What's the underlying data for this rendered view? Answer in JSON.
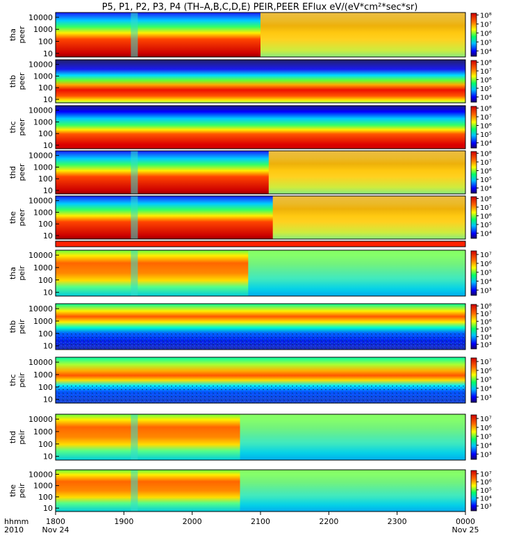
{
  "title": "P5, P1, P2, P3, P4 (TH–A,B,C,D,E) PEIR,PEER EFlux eV/(eV*cm²*sec*sr)",
  "chart_data": {
    "type": "heatmap",
    "title": "P5, P1, P2, P3, P4 (TH–A,B,C,D,E) PEIR,PEER EFlux eV/(eV*cm²*sec*sr)",
    "x_axis": {
      "label_lines": [
        "hhmm",
        "2010"
      ],
      "range_hours": [
        18,
        24
      ],
      "ticks": [
        "1800",
        "1900",
        "2000",
        "2100",
        "2200",
        "2300",
        "0000"
      ],
      "date_labels": [
        {
          "tick": "1800",
          "text": "Nov 24"
        },
        {
          "tick": "0000",
          "text": "Nov 25"
        }
      ]
    },
    "y_axis": {
      "scale": "log",
      "range_eV": [
        5,
        25000
      ],
      "ticks": [
        "10",
        "100",
        "1000",
        "10000"
      ]
    },
    "colormap": "rainbow (blue → cyan → green → yellow → red)",
    "panels": [
      {
        "probe": "tha",
        "product": "peer",
        "label": [
          "tha",
          "peer"
        ],
        "colorbar_ticks": [
          "10⁴",
          "10⁵",
          "10⁶",
          "10⁷",
          "10⁸"
        ],
        "clim_log10": [
          3.4,
          8.2
        ],
        "ticks_log10": [
          4,
          5,
          6,
          7,
          8
        ]
      },
      {
        "probe": "thb",
        "product": "peer",
        "label": [
          "thb",
          "peer"
        ],
        "colorbar_ticks": [
          "10⁴",
          "10⁵",
          "10⁶",
          "10⁷",
          "10⁸"
        ],
        "clim_log10": [
          3.4,
          8.2
        ],
        "ticks_log10": [
          4,
          5,
          6,
          7,
          8
        ]
      },
      {
        "probe": "thc",
        "product": "peer",
        "label": [
          "thc",
          "peer"
        ],
        "colorbar_ticks": [
          "10⁴",
          "10⁵",
          "10⁶",
          "10⁷",
          "10⁸"
        ],
        "clim_log10": [
          3.4,
          8.2
        ],
        "ticks_log10": [
          4,
          5,
          6,
          7,
          8
        ]
      },
      {
        "probe": "thd",
        "product": "peer",
        "label": [
          "thd",
          "peer"
        ],
        "colorbar_ticks": [
          "10⁴",
          "10⁵",
          "10⁶",
          "10⁷",
          "10⁸"
        ],
        "clim_log10": [
          3.4,
          8.2
        ],
        "ticks_log10": [
          4,
          5,
          6,
          7,
          8
        ]
      },
      {
        "probe": "the",
        "product": "peer",
        "label": [
          "the",
          "peer"
        ],
        "colorbar_ticks": [
          "10⁴",
          "10⁵",
          "10⁶",
          "10⁷",
          "10⁸"
        ],
        "clim_log10": [
          3.4,
          8.2
        ],
        "ticks_log10": [
          4,
          5,
          6,
          7,
          8
        ]
      },
      {
        "probe": "tha",
        "product": "peir",
        "label": [
          "tha",
          "peir"
        ],
        "colorbar_ticks": [
          "10³",
          "10⁴",
          "10⁵",
          "10⁶",
          "10⁷"
        ],
        "clim_log10": [
          2.4,
          7.4
        ],
        "ticks_log10": [
          3,
          4,
          5,
          6,
          7
        ]
      },
      {
        "probe": "thb",
        "product": "peir",
        "label": [
          "thb",
          "peir"
        ],
        "colorbar_ticks": [
          "10³",
          "10⁴",
          "10⁵",
          "10⁶",
          "10⁷",
          "10⁸"
        ],
        "clim_log10": [
          2.4,
          8.2
        ],
        "ticks_log10": [
          3,
          4,
          5,
          6,
          7,
          8
        ]
      },
      {
        "probe": "thc",
        "product": "peir",
        "label": [
          "thc",
          "peir"
        ],
        "colorbar_ticks": [
          "10³",
          "10⁴",
          "10⁵",
          "10⁶",
          "10⁷"
        ],
        "clim_log10": [
          2.4,
          7.4
        ],
        "ticks_log10": [
          3,
          4,
          5,
          6,
          7
        ]
      },
      {
        "probe": "thd",
        "product": "peir",
        "label": [
          "thd",
          "peir"
        ],
        "colorbar_ticks": [
          "10³",
          "10⁴",
          "10⁵",
          "10⁶",
          "10⁷"
        ],
        "clim_log10": [
          2.4,
          7.4
        ],
        "ticks_log10": [
          3,
          4,
          5,
          6,
          7
        ]
      },
      {
        "probe": "the",
        "product": "peir",
        "label": [
          "the",
          "peir"
        ],
        "colorbar_ticks": [
          "10³",
          "10⁴",
          "10⁵",
          "10⁶",
          "10⁷"
        ],
        "clim_log10": [
          2.4,
          7.4
        ],
        "ticks_log10": [
          3,
          4,
          5,
          6,
          7
        ]
      }
    ]
  }
}
